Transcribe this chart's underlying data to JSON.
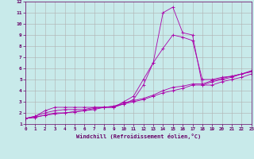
{
  "bg_color": "#c8eaea",
  "grid_color": "#b0b0b0",
  "line_color": "#aa00aa",
  "xlabel": "Windchill (Refroidissement éolien,°C)",
  "ylim": [
    1,
    12
  ],
  "xlim": [
    0,
    23
  ],
  "yticks": [
    1,
    2,
    3,
    4,
    5,
    6,
    7,
    8,
    9,
    10,
    11,
    12
  ],
  "xticks": [
    0,
    1,
    2,
    3,
    4,
    5,
    6,
    7,
    8,
    9,
    10,
    11,
    12,
    13,
    14,
    15,
    16,
    17,
    18,
    19,
    20,
    21,
    22,
    23
  ],
  "series": [
    {
      "x": [
        0,
        1,
        2,
        3,
        4,
        5,
        6,
        7,
        8,
        9,
        10,
        11,
        12,
        13,
        14,
        15,
        16,
        17,
        18,
        19,
        20,
        21,
        22,
        23
      ],
      "y": [
        1.5,
        1.7,
        2.2,
        2.5,
        2.5,
        2.5,
        2.5,
        2.5,
        2.5,
        2.5,
        3.0,
        3.5,
        5.0,
        6.5,
        7.8,
        9.0,
        8.8,
        8.5,
        5.0,
        5.0,
        5.2,
        5.3,
        5.5,
        5.7
      ]
    },
    {
      "x": [
        0,
        1,
        2,
        3,
        4,
        5,
        6,
        7,
        8,
        9,
        10,
        11,
        12,
        13,
        14,
        15,
        16,
        17,
        18,
        19,
        20,
        21,
        22,
        23
      ],
      "y": [
        1.5,
        1.7,
        2.0,
        2.2,
        2.3,
        2.3,
        2.3,
        2.5,
        2.5,
        2.5,
        2.8,
        3.2,
        4.5,
        6.5,
        11.0,
        11.5,
        9.2,
        9.0,
        4.5,
        4.5,
        4.8,
        5.0,
        5.2,
        5.5
      ]
    },
    {
      "x": [
        0,
        1,
        2,
        3,
        4,
        5,
        6,
        7,
        8,
        9,
        10,
        11,
        12,
        13,
        14,
        15,
        16,
        17,
        18,
        19,
        20,
        21,
        22,
        23
      ],
      "y": [
        1.5,
        1.6,
        1.8,
        1.9,
        2.0,
        2.1,
        2.2,
        2.3,
        2.5,
        2.6,
        2.8,
        3.0,
        3.2,
        3.5,
        3.8,
        4.0,
        4.2,
        4.5,
        4.5,
        4.8,
        5.0,
        5.2,
        5.5,
        5.7
      ]
    },
    {
      "x": [
        0,
        1,
        2,
        3,
        4,
        5,
        6,
        7,
        8,
        9,
        10,
        11,
        12,
        13,
        14,
        15,
        16,
        17,
        18,
        19,
        20,
        21,
        22,
        23
      ],
      "y": [
        1.5,
        1.6,
        1.8,
        2.0,
        2.0,
        2.1,
        2.2,
        2.4,
        2.5,
        2.6,
        2.9,
        3.1,
        3.3,
        3.6,
        4.0,
        4.3,
        4.4,
        4.6,
        4.6,
        4.9,
        5.1,
        5.3,
        5.5,
        5.8
      ]
    }
  ]
}
